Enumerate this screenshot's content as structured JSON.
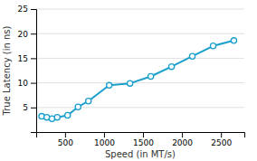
{
  "chart_data": {
    "type": "line",
    "x": [
      200,
      266,
      333,
      400,
      533,
      667,
      800,
      1066,
      1333,
      1600,
      1866,
      2133,
      2400,
      2666
    ],
    "values": [
      3.2,
      3.0,
      2.7,
      3.0,
      3.4,
      5.1,
      6.3,
      9.5,
      9.9,
      11.3,
      13.3,
      15.4,
      17.5,
      18.6
    ],
    "color": "#1a9fcc",
    "marker": "circle",
    "xlabel": "Speed (in MT/s)",
    "ylabel": "True Latency (in ns)",
    "xlim": [
      130,
      2800
    ],
    "ylim": [
      0,
      25
    ],
    "xticks": [
      500,
      1000,
      1500,
      2000,
      2500
    ],
    "yticks": [
      5,
      10,
      15,
      20,
      25
    ],
    "grid": "y"
  }
}
